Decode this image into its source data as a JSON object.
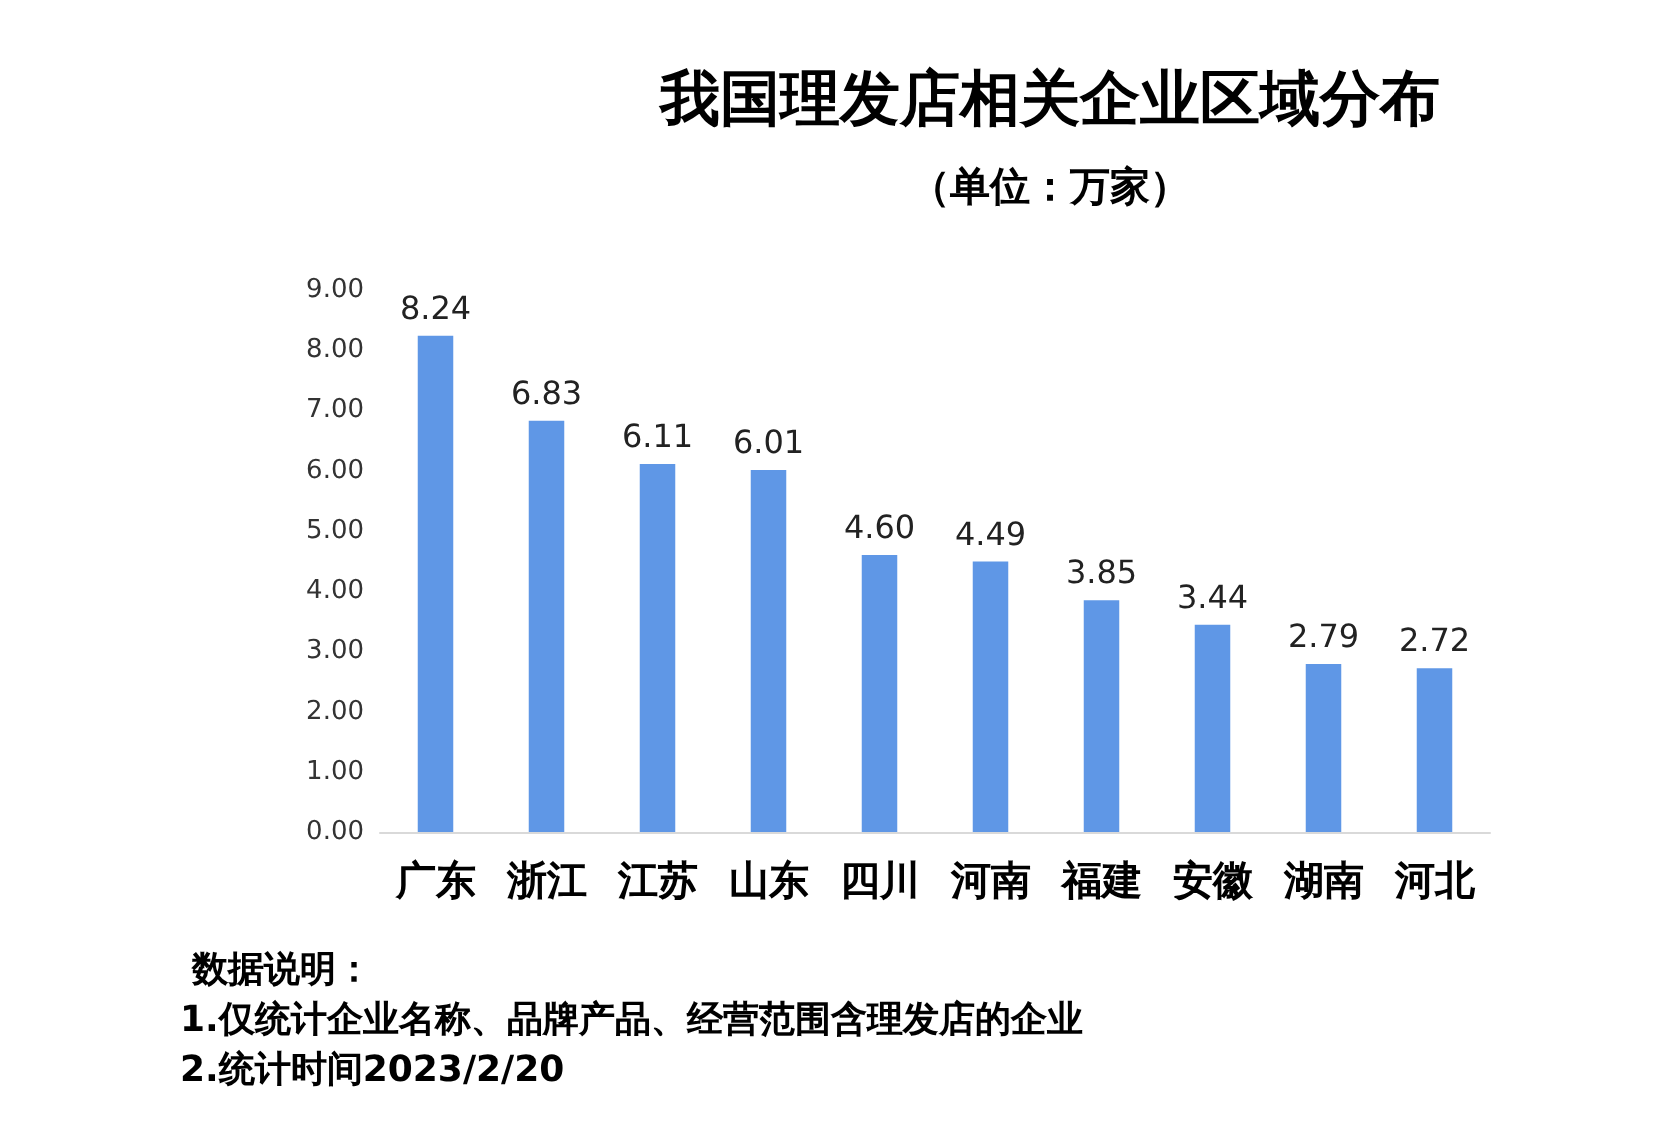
{
  "chart_data": {
    "type": "bar",
    "title": "我国理发店相关企业区域分布",
    "subtitle": "（单位：万家）",
    "categories": [
      "广东",
      "浙江",
      "江苏",
      "山东",
      "四川",
      "河南",
      "福建",
      "安徽",
      "湖南",
      "河北"
    ],
    "values": [
      8.24,
      6.83,
      6.11,
      6.01,
      4.6,
      4.49,
      3.85,
      3.44,
      2.79,
      2.72
    ],
    "value_labels": [
      "8.24",
      "6.83",
      "6.11",
      "6.01",
      "4.60",
      "4.49",
      "3.85",
      "3.44",
      "2.79",
      "2.72"
    ],
    "color": "#5f97e6",
    "ylim": [
      0,
      9
    ],
    "yticks": [
      {
        "value": 0,
        "label": "0.00"
      },
      {
        "value": 1,
        "label": "1.00"
      },
      {
        "value": 2,
        "label": "2.00"
      },
      {
        "value": 3,
        "label": "3.00"
      },
      {
        "value": 4,
        "label": "4.00"
      },
      {
        "value": 5,
        "label": "5.00"
      },
      {
        "value": 6,
        "label": "6.00"
      },
      {
        "value": 7,
        "label": "7.00"
      },
      {
        "value": 8,
        "label": "8.00"
      },
      {
        "value": 9,
        "label": "9.00"
      }
    ],
    "annotations": [
      "数据说明：",
      "1.仅统计企业名称、品牌产品、经营范围含理发店的企业",
      "2.统计时间2023/2/20"
    ]
  }
}
